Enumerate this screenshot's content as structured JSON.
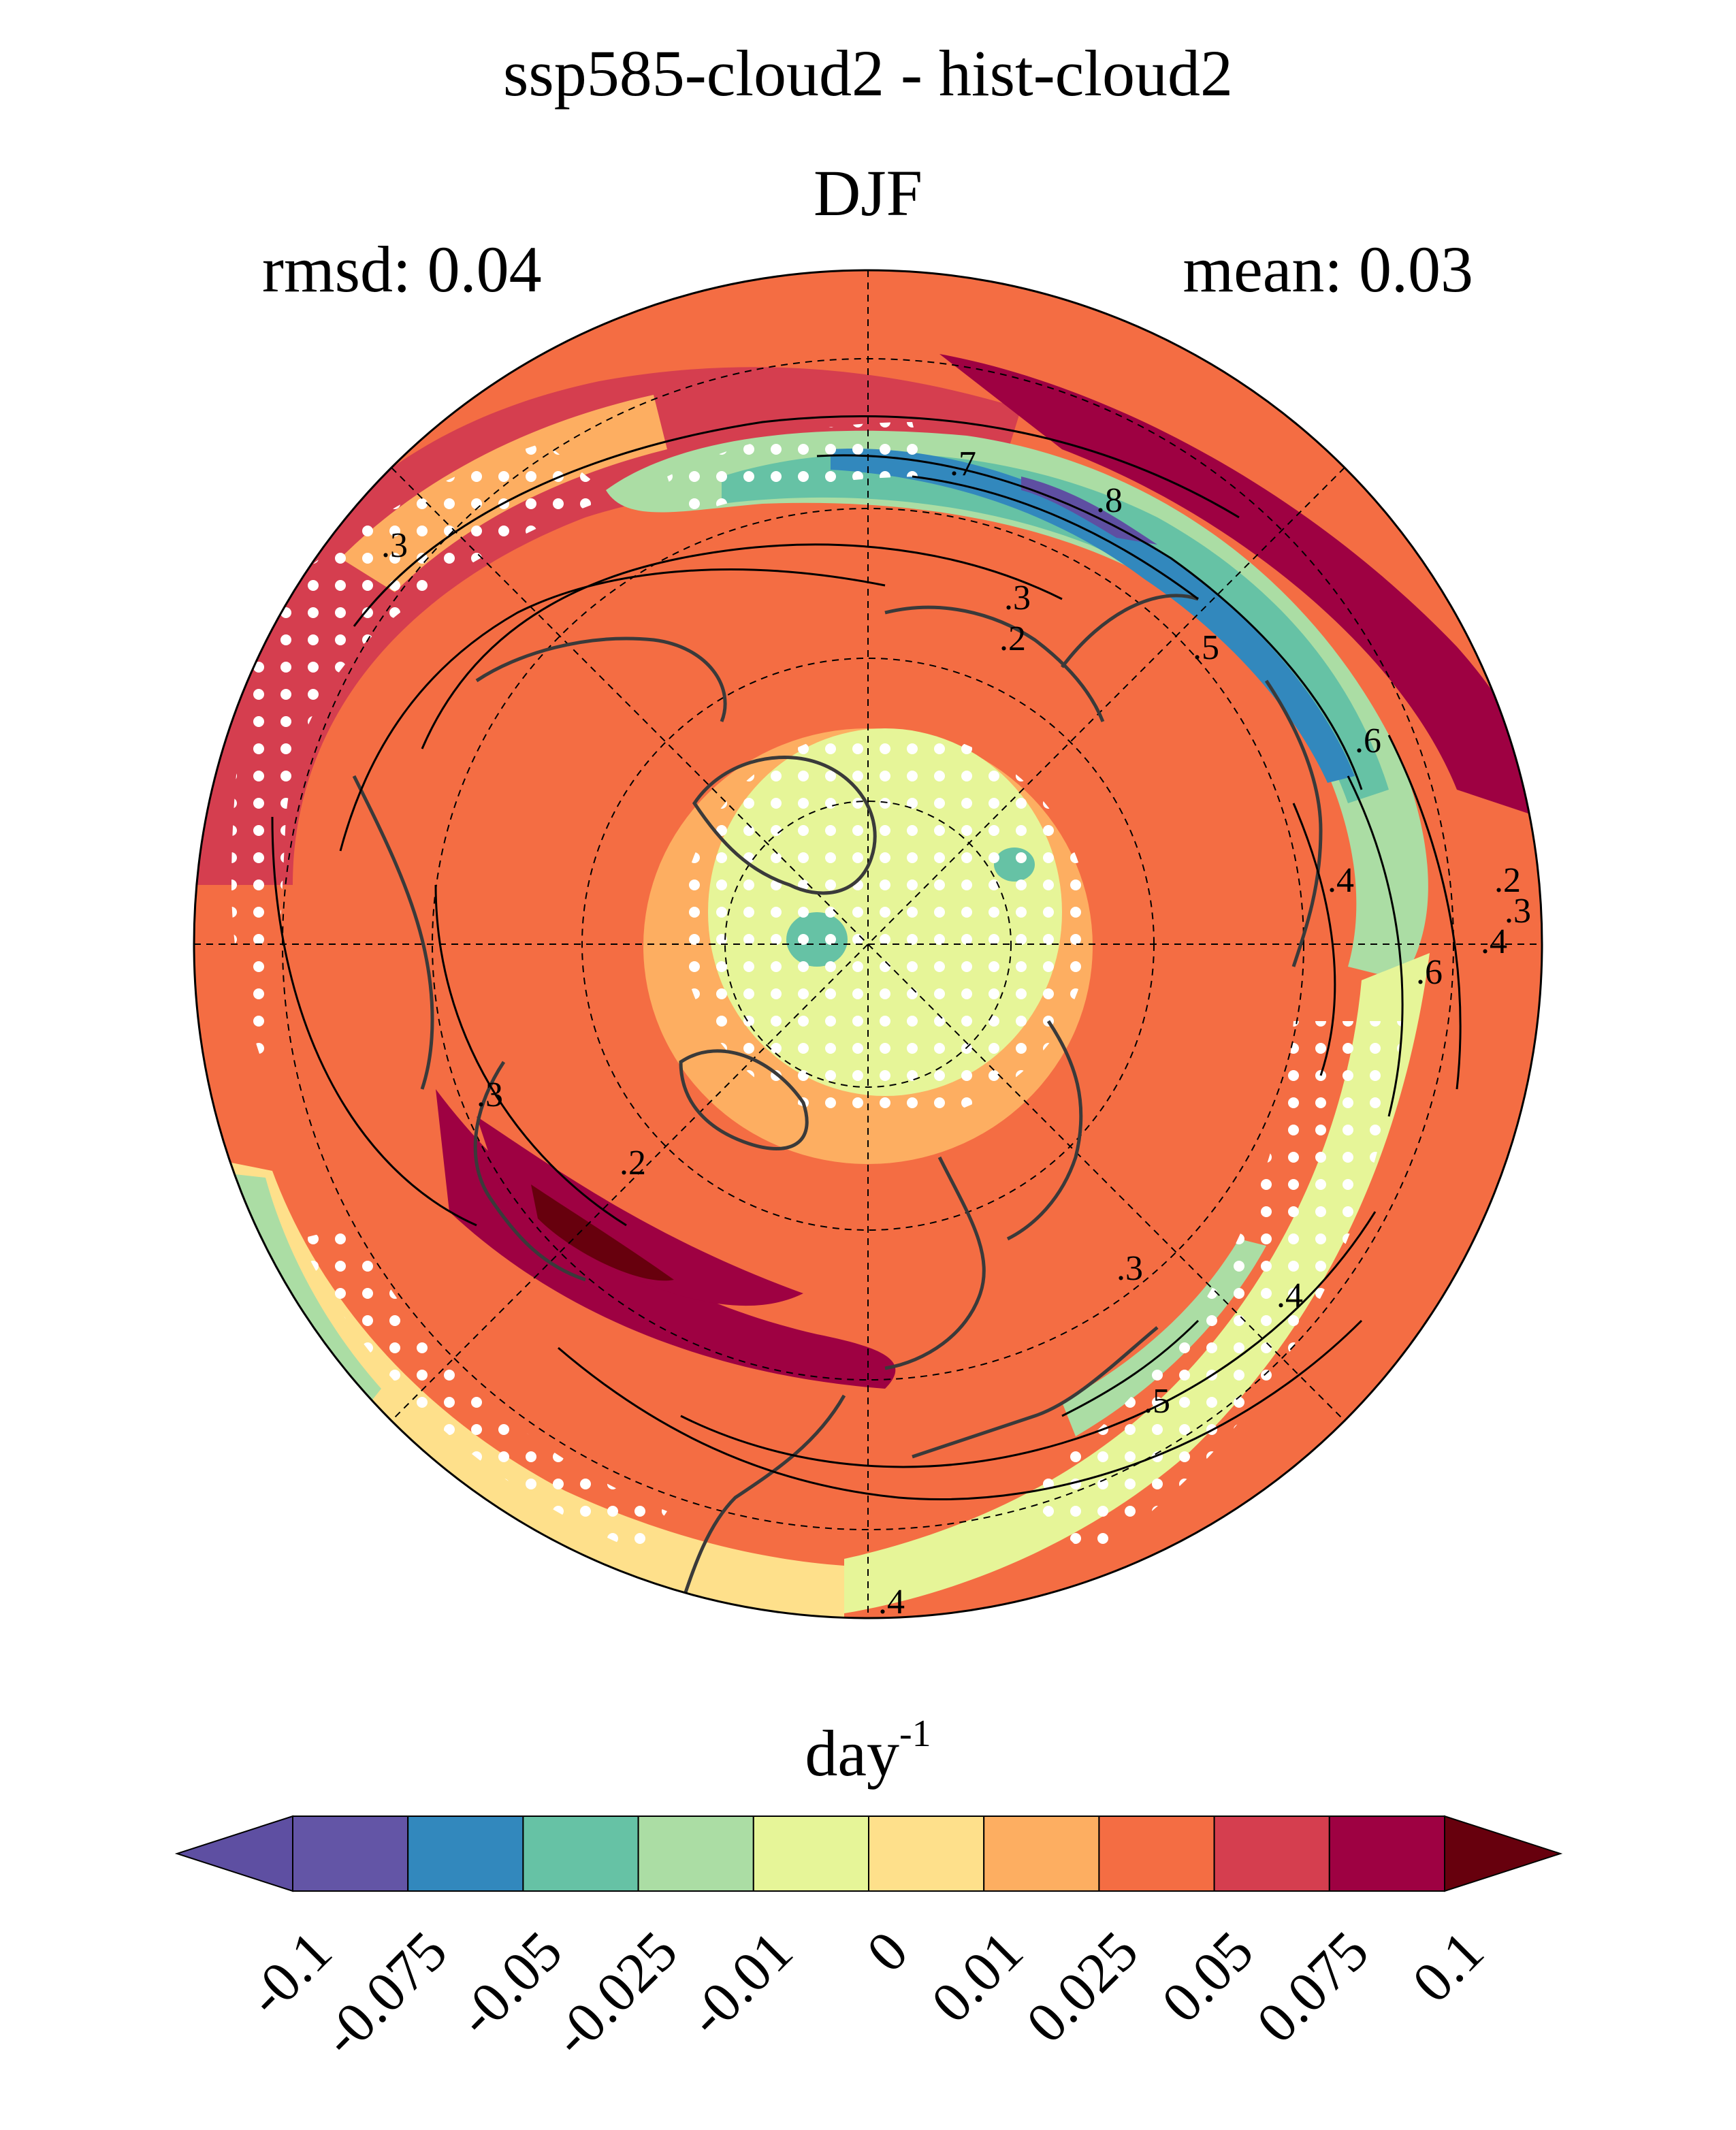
{
  "header": {
    "title": "ssp585-cloud2 - hist-cloud2",
    "season": "DJF",
    "rmsd_label": "rmsd: 0.04",
    "mean_label": "mean: 0.03"
  },
  "colorbar": {
    "units_base": "day",
    "units_exp": "-1",
    "tick_labels": [
      "-0.1",
      "-0.075",
      "-0.05",
      "-0.025",
      "-0.01",
      "0",
      "0.01",
      "0.025",
      "0.05",
      "0.075",
      "0.1"
    ],
    "colors": [
      "#5e4fa2",
      "#6355a6",
      "#3288bd",
      "#66c2a5",
      "#abdda4",
      "#e6f598",
      "#fee08b",
      "#fdae61",
      "#f46d43",
      "#d53e4f",
      "#9e0142",
      "#67000d"
    ]
  },
  "map": {
    "projection": "north-polar-stereographic",
    "stippling_color": "#ffffff",
    "coastline_color": "#3a3a3a",
    "contour_labels": [
      ".7",
      ".8",
      ".3",
      ".2",
      ".5",
      ".6",
      ".4",
      ".6",
      ".3",
      ".2",
      ".3",
      ".2",
      ".3",
      ".5",
      ".4",
      ".4",
      ".3",
      ".4"
    ]
  }
}
